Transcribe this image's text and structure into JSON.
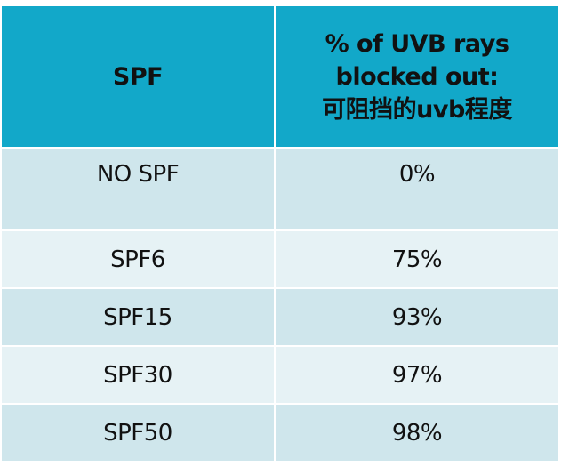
{
  "table": {
    "header": [
      "SPF",
      [
        "% of UVB rays",
        "blocked out:",
        "可阻挡的uvb程度"
      ]
    ],
    "rows": [
      [
        "NO SPF",
        "0%"
      ],
      [
        "SPF6",
        "75%"
      ],
      [
        "SPF15",
        "93%"
      ],
      [
        "SPF30",
        "97%"
      ],
      [
        "SPF50",
        "98%"
      ]
    ]
  }
}
